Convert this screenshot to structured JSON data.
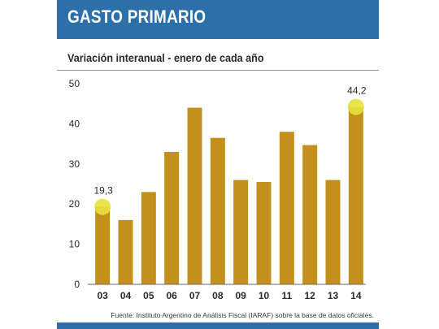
{
  "header": {
    "title": "GASTO PRIMARIO"
  },
  "chart_data": {
    "type": "bar",
    "title": "Variación interanual - enero de cada año",
    "categories": [
      "03",
      "04",
      "05",
      "06",
      "07",
      "08",
      "09",
      "10",
      "11",
      "12",
      "13",
      "14"
    ],
    "values": [
      19.3,
      16.0,
      23.0,
      33.0,
      44.0,
      36.5,
      26.0,
      25.5,
      38.0,
      34.7,
      26.0,
      44.2
    ],
    "data_labels": [
      {
        "category": "03",
        "text": "19,3"
      },
      {
        "category": "14",
        "text": "44,2"
      }
    ],
    "yticks": [
      "0",
      "10",
      "20",
      "30",
      "40",
      "50"
    ],
    "ylim": [
      0,
      50
    ],
    "xlabel": "",
    "ylabel": "",
    "grid": false,
    "bar_color": "#c4901c",
    "highlight_color": "#e6e23a"
  },
  "source": "Fuente: Instituto Argentino de Análisis Fiscal (IARAF) sobre la base de datos oficiales."
}
